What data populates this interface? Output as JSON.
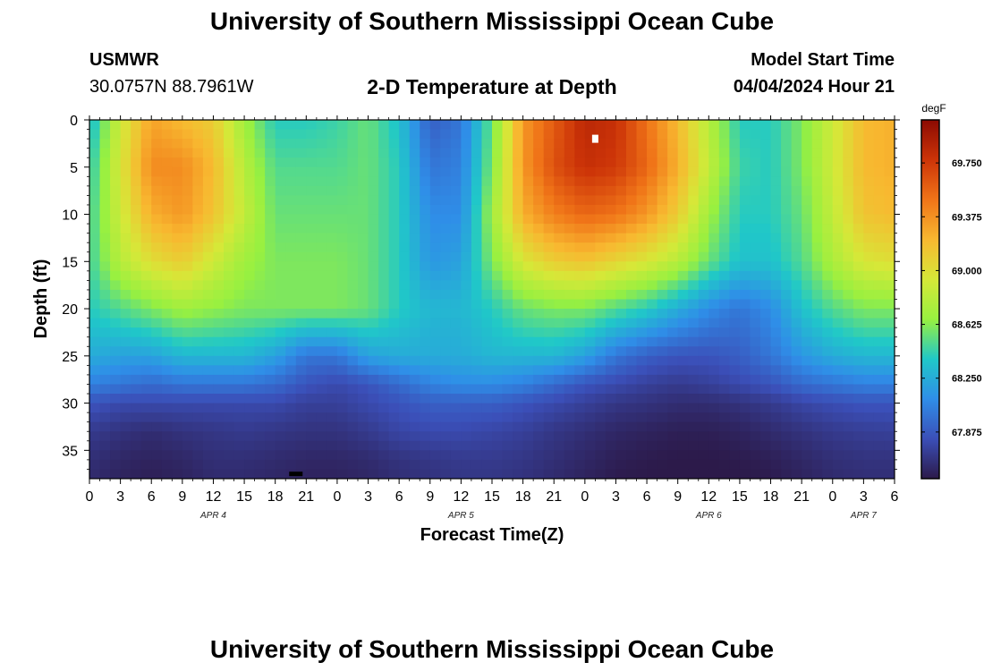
{
  "header": {
    "title": "University of Southern Mississippi Ocean Cube",
    "station_id": "USMWR",
    "coordinates": "30.0757N  88.7961W",
    "plot_title": "2-D Temperature at Depth",
    "model_start_label": "Model Start Time",
    "model_start_value": "04/04/2024 Hour 21"
  },
  "footer": {
    "title": "University of Southern Mississippi Ocean Cube"
  },
  "chart_data": {
    "type": "heatmap",
    "title": "2-D Temperature at Depth",
    "xlabel": "Forecast Time(Z)",
    "ylabel": "Depth (ft)",
    "x_hours_range": [
      0,
      78
    ],
    "x_tick_hours": [
      0,
      3,
      6,
      9,
      12,
      15,
      18,
      21,
      24,
      27,
      30,
      33,
      36,
      39,
      42,
      45,
      48,
      51,
      54,
      57,
      60,
      63,
      66,
      69,
      72,
      75,
      78
    ],
    "x_tick_labels": [
      "0",
      "3",
      "6",
      "9",
      "12",
      "15",
      "18",
      "21",
      "0",
      "3",
      "6",
      "9",
      "12",
      "15",
      "18",
      "21",
      "0",
      "3",
      "6",
      "9",
      "12",
      "15",
      "18",
      "21",
      "0",
      "3",
      "6"
    ],
    "date_labels": [
      {
        "hour": 12,
        "label": "APR 4"
      },
      {
        "hour": 36,
        "label": "APR 5"
      },
      {
        "hour": 60,
        "label": "APR 6"
      },
      {
        "hour": 75,
        "label": "APR 7"
      }
    ],
    "y_range_ft": [
      0,
      38
    ],
    "y_ticks": [
      0,
      5,
      10,
      15,
      20,
      25,
      30,
      35
    ],
    "y_tick_labels": [
      "0",
      "5",
      "10",
      "15",
      "20",
      "25",
      "30",
      "35"
    ],
    "colorbar": {
      "unit": "degF",
      "range": [
        67.55,
        70.05
      ],
      "ticks": [
        67.875,
        68.25,
        68.625,
        69.0,
        69.375,
        69.75
      ],
      "tick_labels": [
        "67.875",
        "68.250",
        "68.625",
        "69.000",
        "69.375",
        "69.750"
      ],
      "colors": [
        "#2c1a4a",
        "#3b4fb8",
        "#2f8ee8",
        "#20c8c8",
        "#98f040",
        "#d6e838",
        "#f8b830",
        "#f07418",
        "#cc3408",
        "#8c0a02"
      ]
    },
    "hours": [
      0,
      3,
      6,
      9,
      12,
      15,
      18,
      21,
      24,
      27,
      30,
      33,
      36,
      39,
      42,
      45,
      48,
      51,
      54,
      57,
      60,
      63,
      66,
      69,
      72,
      75,
      78
    ],
    "depths_ft": [
      0,
      5,
      10,
      15,
      20,
      25,
      28,
      30,
      33,
      36,
      38
    ],
    "temperature_degF": [
      [
        68.3,
        68.9,
        69.3,
        69.2,
        69.1,
        68.7,
        68.4,
        68.4,
        68.45,
        68.55,
        68.35,
        67.9,
        68.0,
        68.55,
        69.35,
        69.6,
        69.85,
        69.8,
        69.5,
        69.2,
        68.8,
        68.4,
        68.4,
        68.6,
        68.9,
        69.2,
        69.25
      ],
      [
        68.4,
        68.95,
        69.4,
        69.4,
        69.2,
        68.8,
        68.5,
        68.5,
        68.5,
        68.55,
        68.4,
        68.0,
        68.05,
        68.6,
        69.35,
        69.65,
        69.8,
        69.75,
        69.55,
        69.25,
        68.85,
        68.45,
        68.4,
        68.6,
        68.9,
        69.2,
        69.25
      ],
      [
        68.45,
        68.9,
        69.25,
        69.35,
        69.15,
        68.85,
        68.55,
        68.55,
        68.55,
        68.55,
        68.4,
        68.1,
        68.1,
        68.7,
        69.25,
        69.45,
        69.55,
        69.5,
        69.35,
        69.1,
        68.7,
        68.4,
        68.4,
        68.55,
        68.85,
        69.15,
        69.2
      ],
      [
        68.45,
        68.8,
        69.0,
        69.1,
        68.9,
        68.7,
        68.6,
        68.6,
        68.6,
        68.55,
        68.4,
        68.15,
        68.2,
        68.6,
        68.95,
        69.1,
        69.15,
        69.05,
        68.95,
        68.8,
        68.55,
        68.35,
        68.35,
        68.5,
        68.75,
        68.95,
        69.0
      ],
      [
        68.4,
        68.5,
        68.6,
        68.7,
        68.65,
        68.6,
        68.6,
        68.6,
        68.6,
        68.55,
        68.4,
        68.3,
        68.3,
        68.4,
        68.55,
        68.6,
        68.6,
        68.5,
        68.4,
        68.25,
        68.1,
        68.0,
        68.1,
        68.35,
        68.5,
        68.6,
        68.6
      ],
      [
        68.25,
        68.2,
        68.2,
        68.3,
        68.3,
        68.3,
        68.2,
        68.0,
        68.0,
        68.2,
        68.25,
        68.25,
        68.25,
        68.3,
        68.3,
        68.3,
        68.2,
        68.0,
        67.9,
        67.85,
        67.85,
        67.9,
        68.0,
        68.15,
        68.25,
        68.3,
        68.3
      ],
      [
        68.05,
        68.0,
        67.95,
        68.0,
        68.0,
        68.0,
        67.95,
        67.85,
        67.8,
        67.85,
        67.95,
        68.05,
        68.1,
        68.1,
        68.05,
        67.95,
        67.85,
        67.8,
        67.75,
        67.72,
        67.75,
        67.8,
        67.85,
        67.95,
        68.0,
        68.05,
        68.05
      ],
      [
        67.85,
        67.8,
        67.8,
        67.8,
        67.8,
        67.8,
        67.8,
        67.75,
        67.75,
        67.8,
        67.85,
        67.9,
        67.9,
        67.9,
        67.85,
        67.8,
        67.75,
        67.7,
        67.68,
        67.65,
        67.65,
        67.68,
        67.72,
        67.78,
        67.82,
        67.85,
        67.85
      ],
      [
        67.72,
        67.68,
        67.65,
        67.68,
        67.7,
        67.72,
        67.7,
        67.68,
        67.68,
        67.72,
        67.78,
        67.8,
        67.8,
        67.78,
        67.75,
        67.7,
        67.66,
        67.62,
        67.6,
        67.58,
        67.58,
        67.6,
        67.64,
        67.68,
        67.72,
        67.74,
        67.75
      ],
      [
        67.66,
        67.62,
        67.6,
        67.62,
        67.66,
        67.66,
        67.64,
        67.62,
        67.62,
        67.64,
        67.68,
        67.7,
        67.72,
        67.72,
        67.7,
        67.66,
        67.62,
        67.58,
        67.56,
        67.55,
        67.55,
        67.56,
        67.58,
        67.62,
        67.66,
        67.68,
        67.68
      ],
      [
        67.64,
        67.6,
        67.58,
        67.6,
        67.64,
        67.64,
        67.62,
        67.6,
        67.6,
        67.62,
        67.66,
        67.68,
        67.7,
        67.7,
        67.68,
        67.64,
        67.6,
        67.56,
        67.55,
        67.55,
        67.55,
        67.55,
        67.56,
        67.6,
        67.64,
        67.66,
        67.66
      ]
    ],
    "annotations": [
      {
        "type": "marker",
        "color": "white",
        "hour": 49,
        "depth_ft": 2
      },
      {
        "type": "marker",
        "color": "black",
        "hour": 20,
        "depth_ft": 37.5
      }
    ]
  }
}
